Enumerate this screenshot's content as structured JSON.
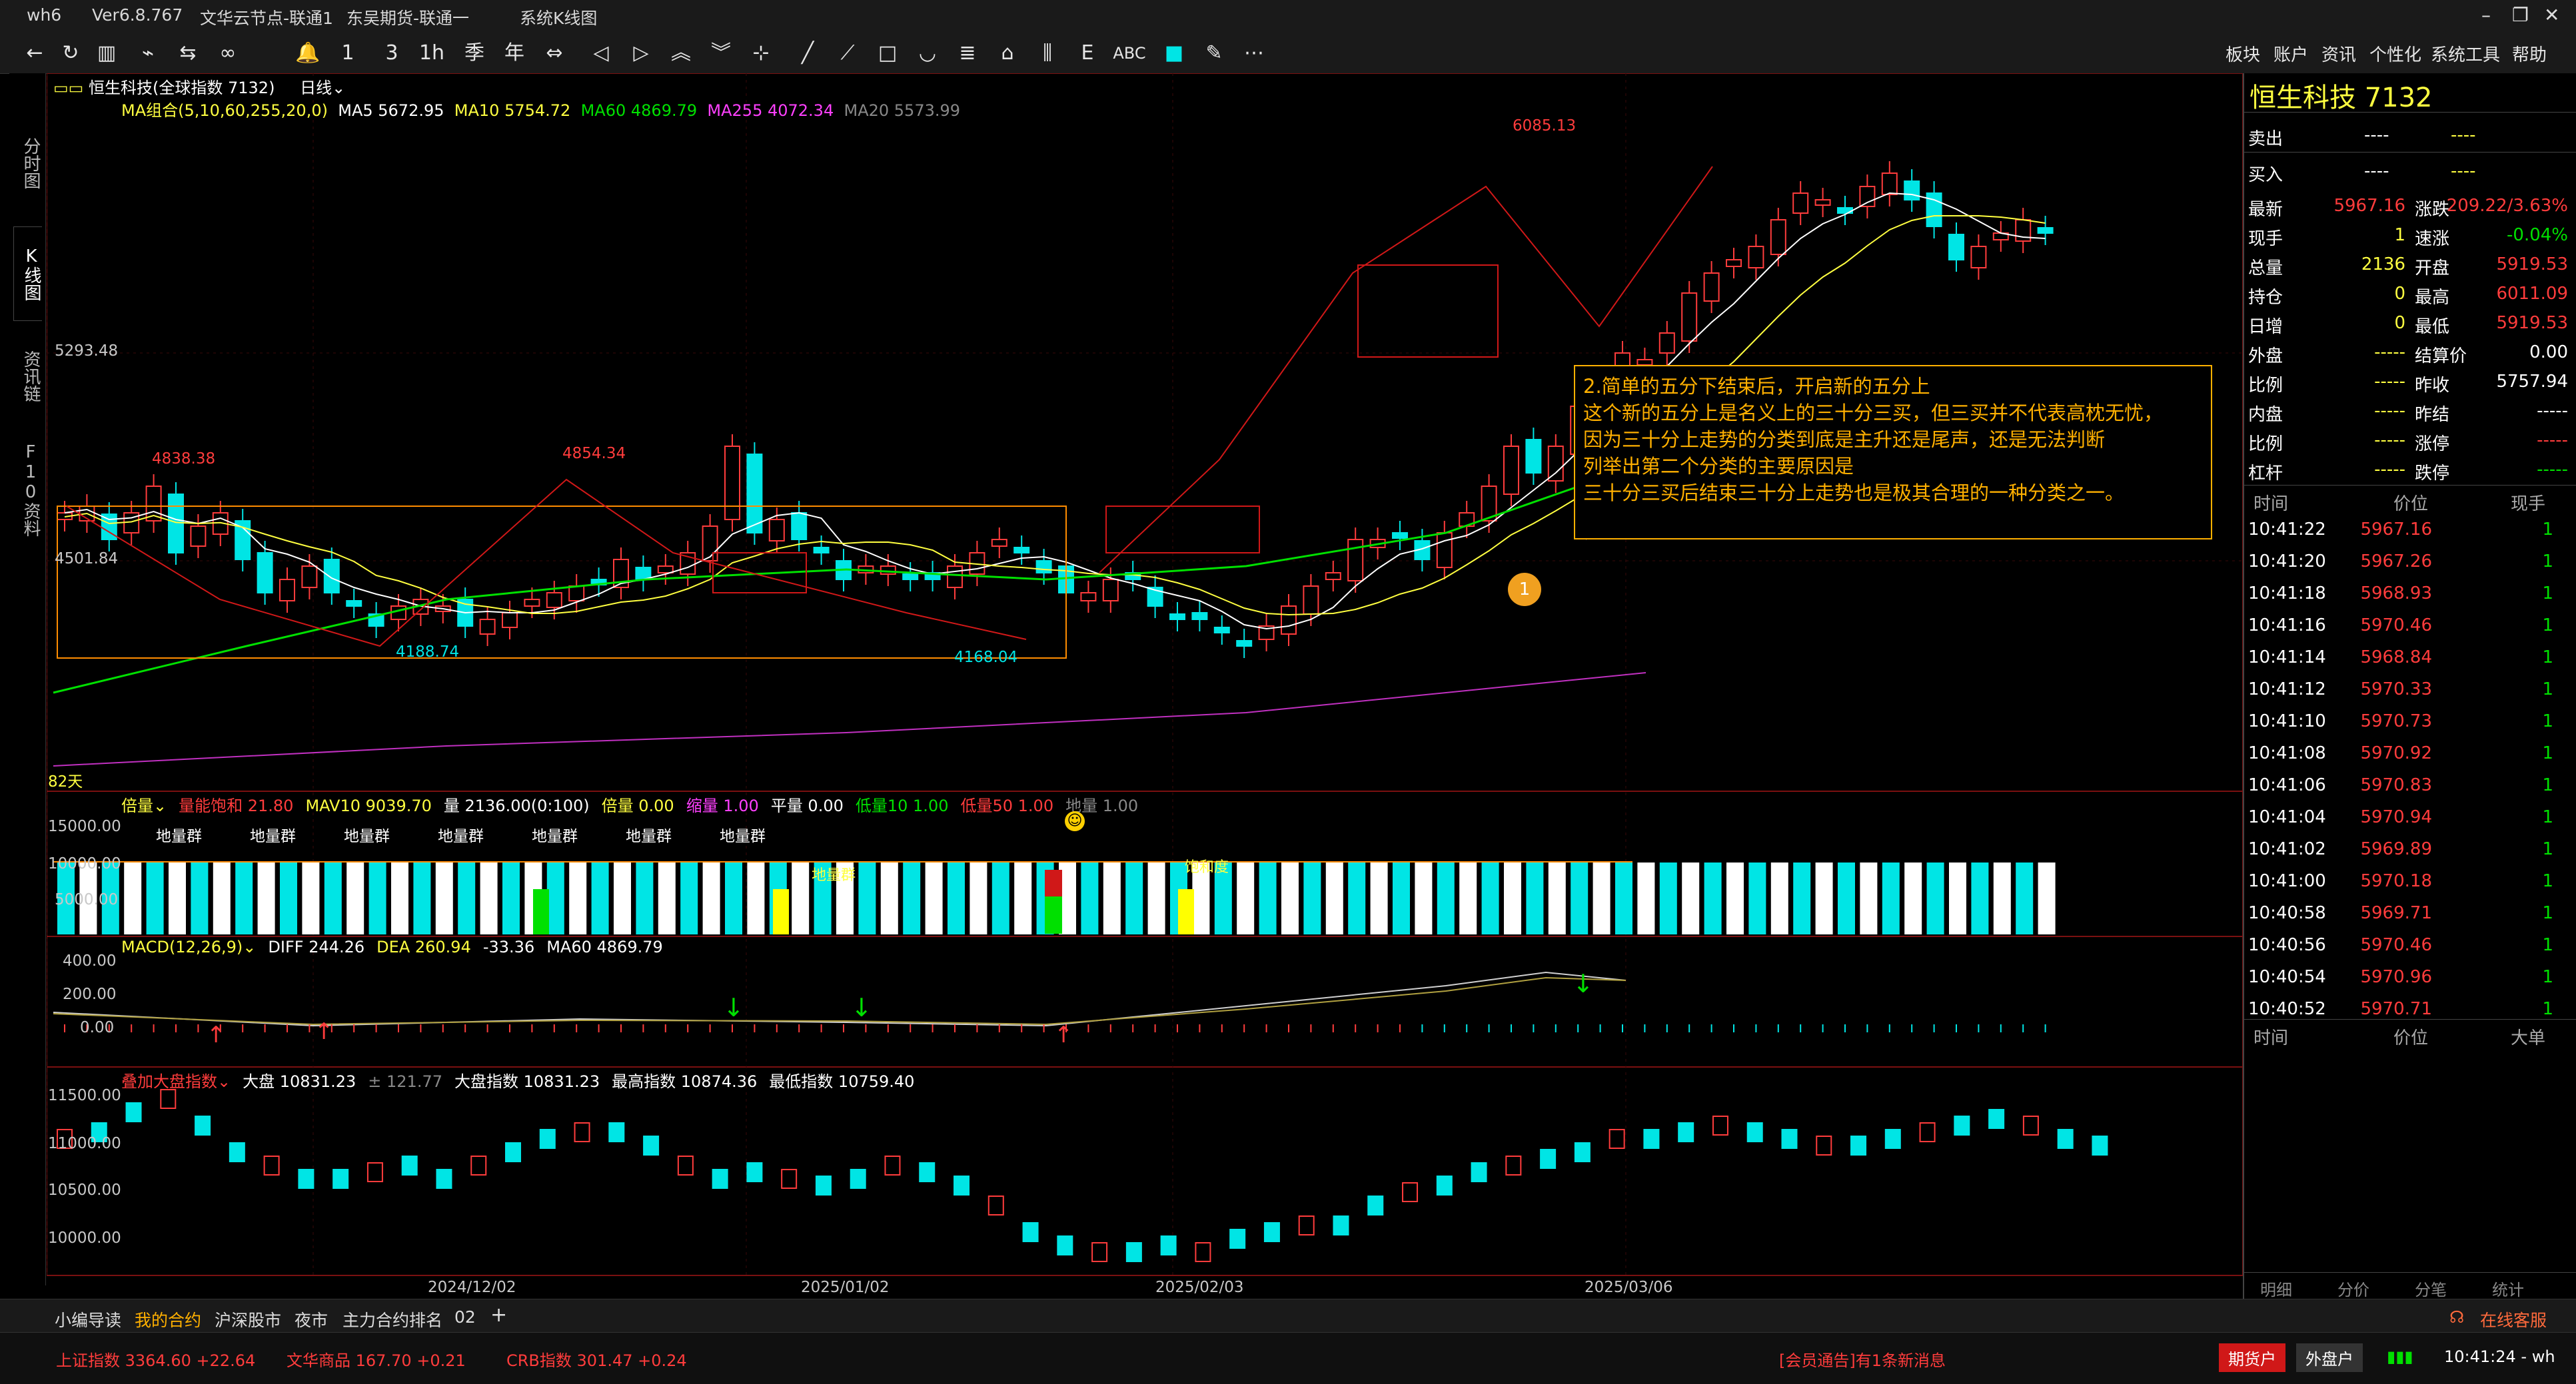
{
  "titlebar": {
    "app": "wh6",
    "version": "Ver6.8.767",
    "server1": "文华云节点-联通1",
    "server2": "东吴期货-联通一",
    "window_title": "系统K线图"
  },
  "menu": [
    "板块",
    "账户",
    "资讯",
    "个性化",
    "系统工具",
    "帮助"
  ],
  "left_tabs": [
    "分时图",
    "K线图",
    "资讯链",
    "F10资料"
  ],
  "chart_header": {
    "symbol": "恒生科技(全球指数 7132)",
    "period": "日线"
  },
  "ma_legend": {
    "name": "MA组合(5,10,60,255,20,0)",
    "ma5": "MA5 5672.95",
    "ma10": "MA10 5754.72",
    "ma60": "MA60 4869.79",
    "ma255": "MA255 4072.34",
    "ma20": "MA20 5573.99"
  },
  "price_axis": {
    "l1": "5293.48",
    "l2": "4501.84"
  },
  "price_annotations": {
    "high1": "4838.38",
    "high2": "4854.34",
    "low1": "4188.74",
    "low2": "4168.04",
    "high3": "6085.13",
    "days": "82天"
  },
  "annotation": {
    "lines": [
      "2.简单的五分下结束后，开启新的五分上",
      "这个新的五分上是名义上的三十分三买，但三买并不代表高枕无忧，",
      "因为三十分上走势的分类到底是主升还是尾声，还是无法判断",
      "列举出第二个分类的主要原因是",
      "三十分三买后结束三十分上走势也是极其合理的一种分类之一。"
    ],
    "marker": "1"
  },
  "volume_panel": {
    "legend": [
      {
        "text": "倍量",
        "color": "#ffff40"
      },
      {
        "text": "量能饱和 21.80",
        "color": "#ff3c3c"
      },
      {
        "text": "MAV10 9039.70",
        "color": "#ffff40"
      },
      {
        "text": "量 2136.00(0:100)",
        "color": "#ffffff"
      },
      {
        "text": "倍量 0.00",
        "color": "#ffff40"
      },
      {
        "text": "缩量 1.00",
        "color": "#ff40ff"
      },
      {
        "text": "平量 0.00",
        "color": "#ffffff"
      },
      {
        "text": "低量10 1.00",
        "color": "#00e000"
      },
      {
        "text": "低量50 1.00",
        "color": "#ff3c3c"
      },
      {
        "text": "地量 1.00",
        "color": "#888888"
      }
    ],
    "y_labels": [
      "15000.00",
      "10000.00",
      "5000.00"
    ],
    "group_label": "地量群",
    "tag1": "地量群",
    "tag2": "饱和度"
  },
  "macd_panel": {
    "legend": [
      {
        "text": "MACD(12,26,9)",
        "color": "#ffff40"
      },
      {
        "text": "DIFF 244.26",
        "color": "#ffffff"
      },
      {
        "text": "DEA 260.94",
        "color": "#ffff40"
      },
      {
        "text": "-33.36",
        "color": "#ffffff"
      },
      {
        "text": "MA60 4869.79",
        "color": "#ffffff"
      }
    ],
    "y_labels": [
      "400.00",
      "200.00",
      "0.00"
    ]
  },
  "index_panel": {
    "legend": [
      {
        "text": "叠加大盘指数",
        "color": "#ff3c3c"
      },
      {
        "text": "大盘 10831.23",
        "color": "#ffffff"
      },
      {
        "text": "± 121.77",
        "color": "#888888"
      },
      {
        "text": "大盘指数 10831.23",
        "color": "#ffffff"
      },
      {
        "text": "最高指数 10874.36",
        "color": "#ffffff"
      },
      {
        "text": "最低指数 10759.40",
        "color": "#ffffff"
      }
    ],
    "y_labels": [
      "11500.00",
      "11000.00",
      "10500.00",
      "10000.00"
    ]
  },
  "x_dates": [
    "2024/12/02",
    "2025/01/02",
    "2025/02/03",
    "2025/03/06"
  ],
  "quote": {
    "title": "恒生科技  7132",
    "sell_label": "卖出",
    "sell_price": "----",
    "sell_qty": "----",
    "buy_label": "买入",
    "buy_price": "----",
    "buy_qty": "----",
    "rows": [
      {
        "l1": "最新",
        "v1": "5967.16",
        "c1": "#ff3c3c",
        "l2": "涨跌",
        "v2": "209.22/3.63%",
        "c2": "#ff3c3c"
      },
      {
        "l1": "现手",
        "v1": "1",
        "c1": "#ffff40",
        "l2": "速涨",
        "v2": "-0.04%",
        "c2": "#00e000"
      },
      {
        "l1": "总量",
        "v1": "2136",
        "c1": "#ffff40",
        "l2": "开盘",
        "v2": "5919.53",
        "c2": "#ff3c3c"
      },
      {
        "l1": "持仓",
        "v1": "0",
        "c1": "#ffff40",
        "l2": "最高",
        "v2": "6011.09",
        "c2": "#ff3c3c"
      },
      {
        "l1": "日增",
        "v1": "0",
        "c1": "#ffff40",
        "l2": "最低",
        "v2": "5919.53",
        "c2": "#ff3c3c"
      },
      {
        "l1": "外盘",
        "v1": "-----",
        "c1": "#ffff40",
        "l2": "结算价",
        "v2": "0.00",
        "c2": "#ffffff"
      },
      {
        "l1": "比例",
        "v1": "-----",
        "c1": "#ffff40",
        "l2": "昨收",
        "v2": "5757.94",
        "c2": "#ffffff"
      },
      {
        "l1": "内盘",
        "v1": "-----",
        "c1": "#ffff40",
        "l2": "昨结",
        "v2": "-----",
        "c2": "#ffffff"
      },
      {
        "l1": "比例",
        "v1": "-----",
        "c1": "#ffff40",
        "l2": "涨停",
        "v2": "-----",
        "c2": "#ff3c3c"
      },
      {
        "l1": "杠杆",
        "v1": "-----",
        "c1": "#ffff40",
        "l2": "跌停",
        "v2": "-----",
        "c2": "#00e000"
      }
    ],
    "ticks_header": [
      "时间",
      "价位",
      "现手"
    ],
    "ticks": [
      {
        "t": "10:41:22",
        "p": "5967.16",
        "q": "1"
      },
      {
        "t": "10:41:20",
        "p": "5967.26",
        "q": "1"
      },
      {
        "t": "10:41:18",
        "p": "5968.93",
        "q": "1"
      },
      {
        "t": "10:41:16",
        "p": "5970.46",
        "q": "1"
      },
      {
        "t": "10:41:14",
        "p": "5968.84",
        "q": "1"
      },
      {
        "t": "10:41:12",
        "p": "5970.33",
        "q": "1"
      },
      {
        "t": "10:41:10",
        "p": "5970.73",
        "q": "1"
      },
      {
        "t": "10:41:08",
        "p": "5970.92",
        "q": "1"
      },
      {
        "t": "10:41:06",
        "p": "5970.83",
        "q": "1"
      },
      {
        "t": "10:41:04",
        "p": "5970.94",
        "q": "1"
      },
      {
        "t": "10:41:02",
        "p": "5969.89",
        "q": "1"
      },
      {
        "t": "10:41:00",
        "p": "5970.18",
        "q": "1"
      },
      {
        "t": "10:40:58",
        "p": "5969.71",
        "q": "1"
      },
      {
        "t": "10:40:56",
        "p": "5970.46",
        "q": "1"
      },
      {
        "t": "10:40:54",
        "p": "5970.96",
        "q": "1"
      },
      {
        "t": "10:40:52",
        "p": "5970.71",
        "q": "1"
      }
    ],
    "big_header": [
      "时间",
      "价位",
      "大单"
    ],
    "bottom_tabs": [
      "明细",
      "分价",
      "分笔",
      "统计"
    ]
  },
  "bottom_tabs": [
    "小编导读",
    "我的合约",
    "沪深股市",
    "夜市",
    "主力合约排名",
    "02",
    "+"
  ],
  "online_service": "在线客服",
  "status": {
    "sh": "上证指数  3364.60  +22.64",
    "wh": "文华商品  167.70  +0.21",
    "crb": "CRB指数  301.47  +0.24",
    "notice": "[会员通告]有1条新消息",
    "futures_btn": "期货户",
    "fx_btn": "外盘户",
    "clock": "10:41:24 - wh"
  },
  "colors": {
    "up": "#ff3c3c",
    "down": "#00e5e5",
    "ma5": "#ffffff",
    "ma10": "#ffff40",
    "ma60": "#00e000",
    "ma255": "#ff40ff",
    "box": "#ff8c00"
  }
}
